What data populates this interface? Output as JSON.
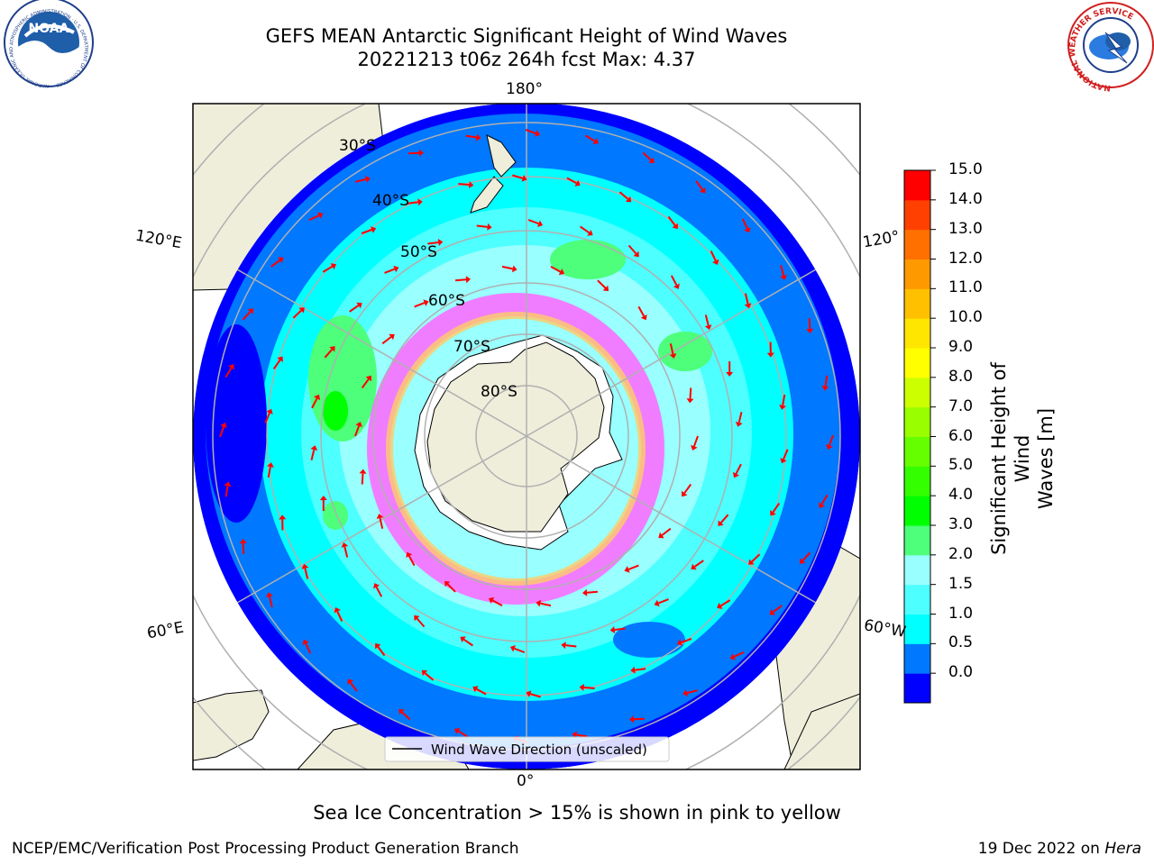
{
  "header": {
    "title_line1": "GEFS MEAN Antarctic Significant Height of Wind Waves",
    "title_line2": "20221213 t06z 264h fcst   Max: 4.37"
  },
  "logos": {
    "noaa_text": "NOAA",
    "noaa_ring_text": "NATIONAL OCEANIC AND ATMOSPHERIC ADMINISTRATION · U.S. DEPARTMENT OF COMMERCE",
    "nws_ring_text": "NATIONAL WEATHER SERVICE"
  },
  "map": {
    "lon_labels": {
      "top": "180°",
      "bottom": "0°",
      "left_upper": "120°E",
      "left_lower": "60°E",
      "right_upper": "120°",
      "right_lower": "60°W"
    },
    "lat_labels": [
      "30°S",
      "40°S",
      "50°S",
      "60°S",
      "70°S",
      "80°S"
    ],
    "legend_label": "Wind Wave Direction (unscaled)"
  },
  "colorbar": {
    "label_line1": "Significant Height of Wind",
    "label_line2": "Waves [m]",
    "ticks": [
      "15.0",
      "14.0",
      "13.0",
      "12.0",
      "11.0",
      "10.0",
      "9.0",
      "8.0",
      "7.0",
      "6.0",
      "5.0",
      "4.0",
      "3.0",
      "2.0",
      "1.5",
      "1.0",
      "0.5",
      "0.0"
    ],
    "colors": [
      "#0000ff",
      "#0078ff",
      "#00ffff",
      "#4dffff",
      "#99ffff",
      "#4dff7a",
      "#00ff00",
      "#33ff00",
      "#66ff00",
      "#99ff00",
      "#ccff00",
      "#ffff00",
      "#ffe600",
      "#ffc000",
      "#ff9900",
      "#ff7000",
      "#ff4000",
      "#ff0000"
    ]
  },
  "annotations": {
    "sea_ice_note": "Sea Ice Concentration > 15% is shown in pink to yellow"
  },
  "footer": {
    "left": "NCEP/EMC/Verification Post Processing Product Generation Branch",
    "right_prefix": "19 Dec 2022 on ",
    "right_host": "Hera"
  }
}
